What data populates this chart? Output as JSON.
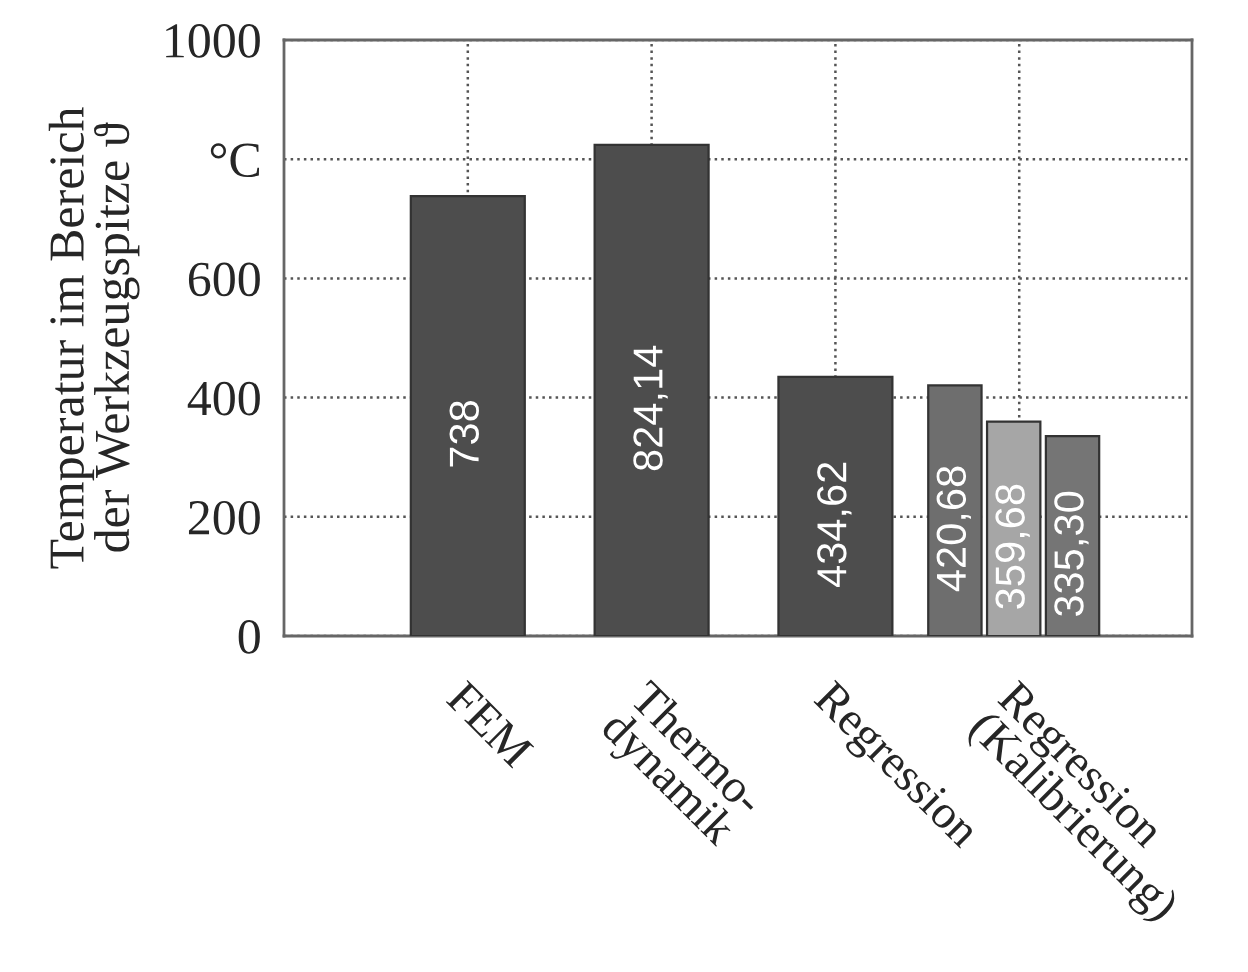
{
  "chart_data": {
    "type": "bar",
    "ylabel": "Temperatur im Bereich\nder Werkzeugspitze ϑ",
    "categories": [
      "FEM",
      "Thermo-\ndynamik",
      "Regression",
      "Regression\n(Kalibrierung)"
    ],
    "series": [
      {
        "color": "#4d4d4d",
        "values": [
          738,
          824.14,
          434.62,
          null
        ],
        "value_labels": [
          "738",
          "824,14",
          "434,62",
          null
        ]
      },
      {
        "color": "#6e6e6e",
        "values": [
          null,
          null,
          null,
          420.68
        ],
        "value_labels": [
          null,
          null,
          null,
          "420,68"
        ]
      },
      {
        "color": "#a6a6a6",
        "values": [
          null,
          null,
          null,
          359.68
        ],
        "value_labels": [
          null,
          null,
          null,
          "359,68"
        ]
      },
      {
        "color": "#757575",
        "values": [
          null,
          null,
          null,
          335.3
        ],
        "value_labels": [
          null,
          null,
          null,
          "335,30"
        ]
      }
    ],
    "ylim": [
      0,
      1000
    ],
    "yticks": [
      0,
      200,
      400,
      600,
      {
        "value": 800,
        "label": "°C"
      },
      1000
    ],
    "grid": true
  }
}
